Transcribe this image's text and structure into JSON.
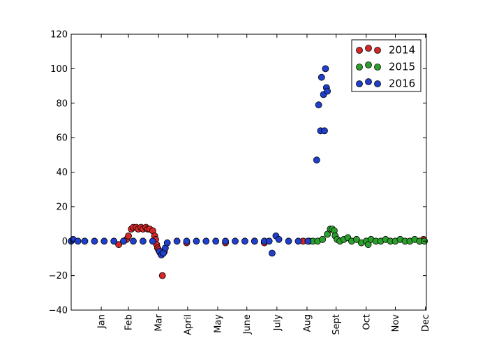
{
  "chart_data": {
    "type": "scatter",
    "title": "",
    "xlabel": "",
    "ylabel": "",
    "ylim": [
      -40,
      120
    ],
    "xlim": [
      1,
      367
    ],
    "yticks": [
      -40,
      -20,
      0,
      20,
      40,
      60,
      80,
      100,
      120
    ],
    "ytick_labels": [
      "−40",
      "−20",
      "0",
      "20",
      "40",
      "60",
      "80",
      "100",
      "120"
    ],
    "xticks": [
      {
        "label": "Jan",
        "value": 32
      },
      {
        "label": "Feb",
        "value": 60
      },
      {
        "label": "Mar",
        "value": 91
      },
      {
        "label": "April",
        "value": 121
      },
      {
        "label": "May",
        "value": 152
      },
      {
        "label": "June",
        "value": 182
      },
      {
        "label": "July",
        "value": 213
      },
      {
        "label": "Aug",
        "value": 244
      },
      {
        "label": "Sept",
        "value": 274
      },
      {
        "label": "Oct",
        "value": 305
      },
      {
        "label": "Nov",
        "value": 335
      },
      {
        "label": "Dec",
        "value": 366
      }
    ],
    "legend_position": "top-right",
    "grid": false,
    "series": [
      {
        "name": "2014",
        "color": "#d62728",
        "x": [
          50,
          55,
          58,
          60,
          63,
          65,
          68,
          70,
          73,
          75,
          78,
          80,
          82,
          85,
          87,
          88,
          89,
          90,
          91,
          92,
          93,
          95,
          97,
          120,
          160,
          190,
          200,
          240,
          360,
          364
        ],
        "y": [
          -2,
          0,
          1,
          3,
          7,
          8,
          8,
          7,
          8,
          7,
          8,
          7,
          7,
          6,
          3,
          1,
          -2,
          -4,
          -5,
          -6,
          -7,
          -20,
          -6,
          -1,
          -1,
          0,
          -1,
          0,
          0,
          1
        ]
      },
      {
        "name": "2015",
        "color": "#2ca02c",
        "x": [
          246,
          250,
          255,
          260,
          265,
          268,
          270,
          272,
          273,
          275,
          278,
          282,
          286,
          290,
          295,
          300,
          305,
          307,
          310,
          315,
          320,
          325,
          330,
          335,
          340,
          345,
          350,
          355,
          360,
          365
        ],
        "y": [
          0,
          0,
          0,
          1,
          4,
          7,
          7,
          6,
          3,
          1,
          0,
          1,
          2,
          0,
          1,
          -1,
          0,
          -2,
          1,
          0,
          0,
          1,
          0,
          0,
          1,
          0,
          0,
          1,
          0,
          0
        ]
      },
      {
        "name": "2016",
        "color": "#1f3fcc",
        "x": [
          1,
          3,
          8,
          15,
          25,
          35,
          45,
          55,
          65,
          75,
          85,
          92,
          94,
          96,
          98,
          100,
          110,
          120,
          130,
          140,
          150,
          160,
          170,
          180,
          190,
          200,
          205,
          208,
          212,
          215,
          225,
          235,
          245,
          254,
          256,
          258,
          259,
          261,
          262,
          263,
          264,
          265
        ],
        "y": [
          0,
          1,
          0,
          0,
          0,
          0,
          0,
          0,
          0,
          0,
          0,
          -6,
          -8,
          -7,
          -4,
          -1,
          0,
          0,
          0,
          0,
          0,
          0,
          0,
          0,
          0,
          0,
          0,
          -7,
          3,
          1,
          0,
          0,
          0,
          47,
          79,
          64,
          95,
          85,
          64,
          100,
          89,
          87
        ]
      }
    ]
  }
}
